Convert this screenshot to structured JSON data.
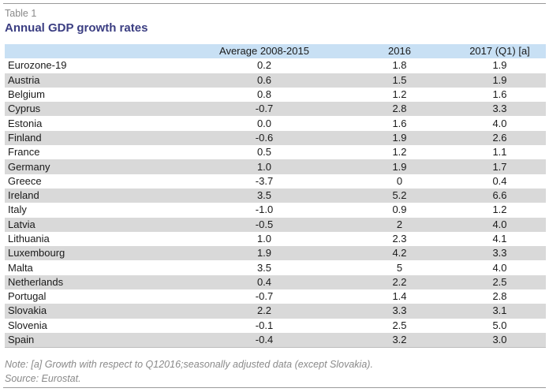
{
  "header": {
    "kicker": "Table 1",
    "title": "Annual GDP growth rates"
  },
  "table": {
    "columns": [
      "",
      "Average 2008-2015",
      "2016",
      "2017 (Q1) [a]"
    ],
    "rows": [
      {
        "country": "Eurozone-19",
        "avg": "0.2",
        "y2016": "1.8",
        "y2017": "1.9"
      },
      {
        "country": "Austria",
        "avg": "0.6",
        "y2016": "1.5",
        "y2017": "1.9"
      },
      {
        "country": "Belgium",
        "avg": "0.8",
        "y2016": "1.2",
        "y2017": "1.6"
      },
      {
        "country": "Cyprus",
        "avg": "-0.7",
        "y2016": "2.8",
        "y2017": "3.3"
      },
      {
        "country": "Estonia",
        "avg": "0.0",
        "y2016": "1.6",
        "y2017": "4.0"
      },
      {
        "country": "Finland",
        "avg": "-0.6",
        "y2016": "1.9",
        "y2017": "2.6"
      },
      {
        "country": "France",
        "avg": "0.5",
        "y2016": "1.2",
        "y2017": "1.1"
      },
      {
        "country": "Germany",
        "avg": "1.0",
        "y2016": "1.9",
        "y2017": "1.7"
      },
      {
        "country": "Greece",
        "avg": "-3.7",
        "y2016": "0",
        "y2017": "0.4"
      },
      {
        "country": "Ireland",
        "avg": "3.5",
        "y2016": "5.2",
        "y2017": "6.6"
      },
      {
        "country": "Italy",
        "avg": "-1.0",
        "y2016": "0.9",
        "y2017": "1.2"
      },
      {
        "country": "Latvia",
        "avg": "-0.5",
        "y2016": "2",
        "y2017": "4.0"
      },
      {
        "country": "Lithuania",
        "avg": "1.0",
        "y2016": "2.3",
        "y2017": "4.1"
      },
      {
        "country": "Luxembourg",
        "avg": "1.9",
        "y2016": "4.2",
        "y2017": "3.3"
      },
      {
        "country": "Malta",
        "avg": "3.5",
        "y2016": "5",
        "y2017": "4.0"
      },
      {
        "country": "Netherlands",
        "avg": "0.4",
        "y2016": "2.2",
        "y2017": "2.5"
      },
      {
        "country": "Portugal",
        "avg": "-0.7",
        "y2016": "1.4",
        "y2017": "2.8"
      },
      {
        "country": "Slovakia",
        "avg": "2.2",
        "y2016": "3.3",
        "y2017": "3.1"
      },
      {
        "country": "Slovenia",
        "avg": "-0.1",
        "y2016": "2.5",
        "y2017": "5.0"
      },
      {
        "country": "Spain",
        "avg": "-0.4",
        "y2016": "3.2",
        "y2017": "3.0"
      }
    ]
  },
  "footer": {
    "note": "Note: [a] Growth with respect to Q12016;seasonally adjusted data (except Slovakia).",
    "source": "Source: Eurostat."
  },
  "colors": {
    "title": "#3b3e82",
    "header_band": "#c8e0f4",
    "stripe": "#d9d9d9",
    "muted_text": "#8a8a8a"
  }
}
